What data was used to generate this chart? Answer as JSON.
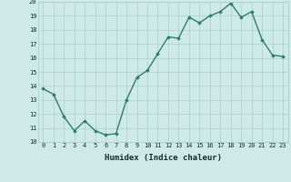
{
  "x": [
    0,
    1,
    2,
    3,
    4,
    5,
    6,
    7,
    8,
    9,
    10,
    11,
    12,
    13,
    14,
    15,
    16,
    17,
    18,
    19,
    20,
    21,
    22,
    23
  ],
  "y": [
    13.8,
    13.4,
    11.8,
    10.8,
    11.5,
    10.8,
    10.5,
    10.6,
    13.0,
    14.6,
    15.1,
    16.3,
    17.5,
    17.4,
    18.9,
    18.5,
    19.0,
    19.3,
    19.9,
    18.9,
    19.3,
    17.3,
    16.2,
    16.1
  ],
  "xlabel": "Humidex (Indice chaleur)",
  "ylim": [
    10,
    20
  ],
  "xlim": [
    -0.5,
    23.5
  ],
  "yticks": [
    10,
    11,
    12,
    13,
    14,
    15,
    16,
    17,
    18,
    19,
    20
  ],
  "xticks": [
    0,
    1,
    2,
    3,
    4,
    5,
    6,
    7,
    8,
    9,
    10,
    11,
    12,
    13,
    14,
    15,
    16,
    17,
    18,
    19,
    20,
    21,
    22,
    23
  ],
  "line_color": "#2e7d6e",
  "marker": "D",
  "marker_size": 1.8,
  "bg_color": "#ceeae7",
  "grid_color": "#aacfcc",
  "line_width": 1.0,
  "tick_fontsize": 5.0,
  "xlabel_fontsize": 6.5,
  "xlabel_fontweight": "bold"
}
